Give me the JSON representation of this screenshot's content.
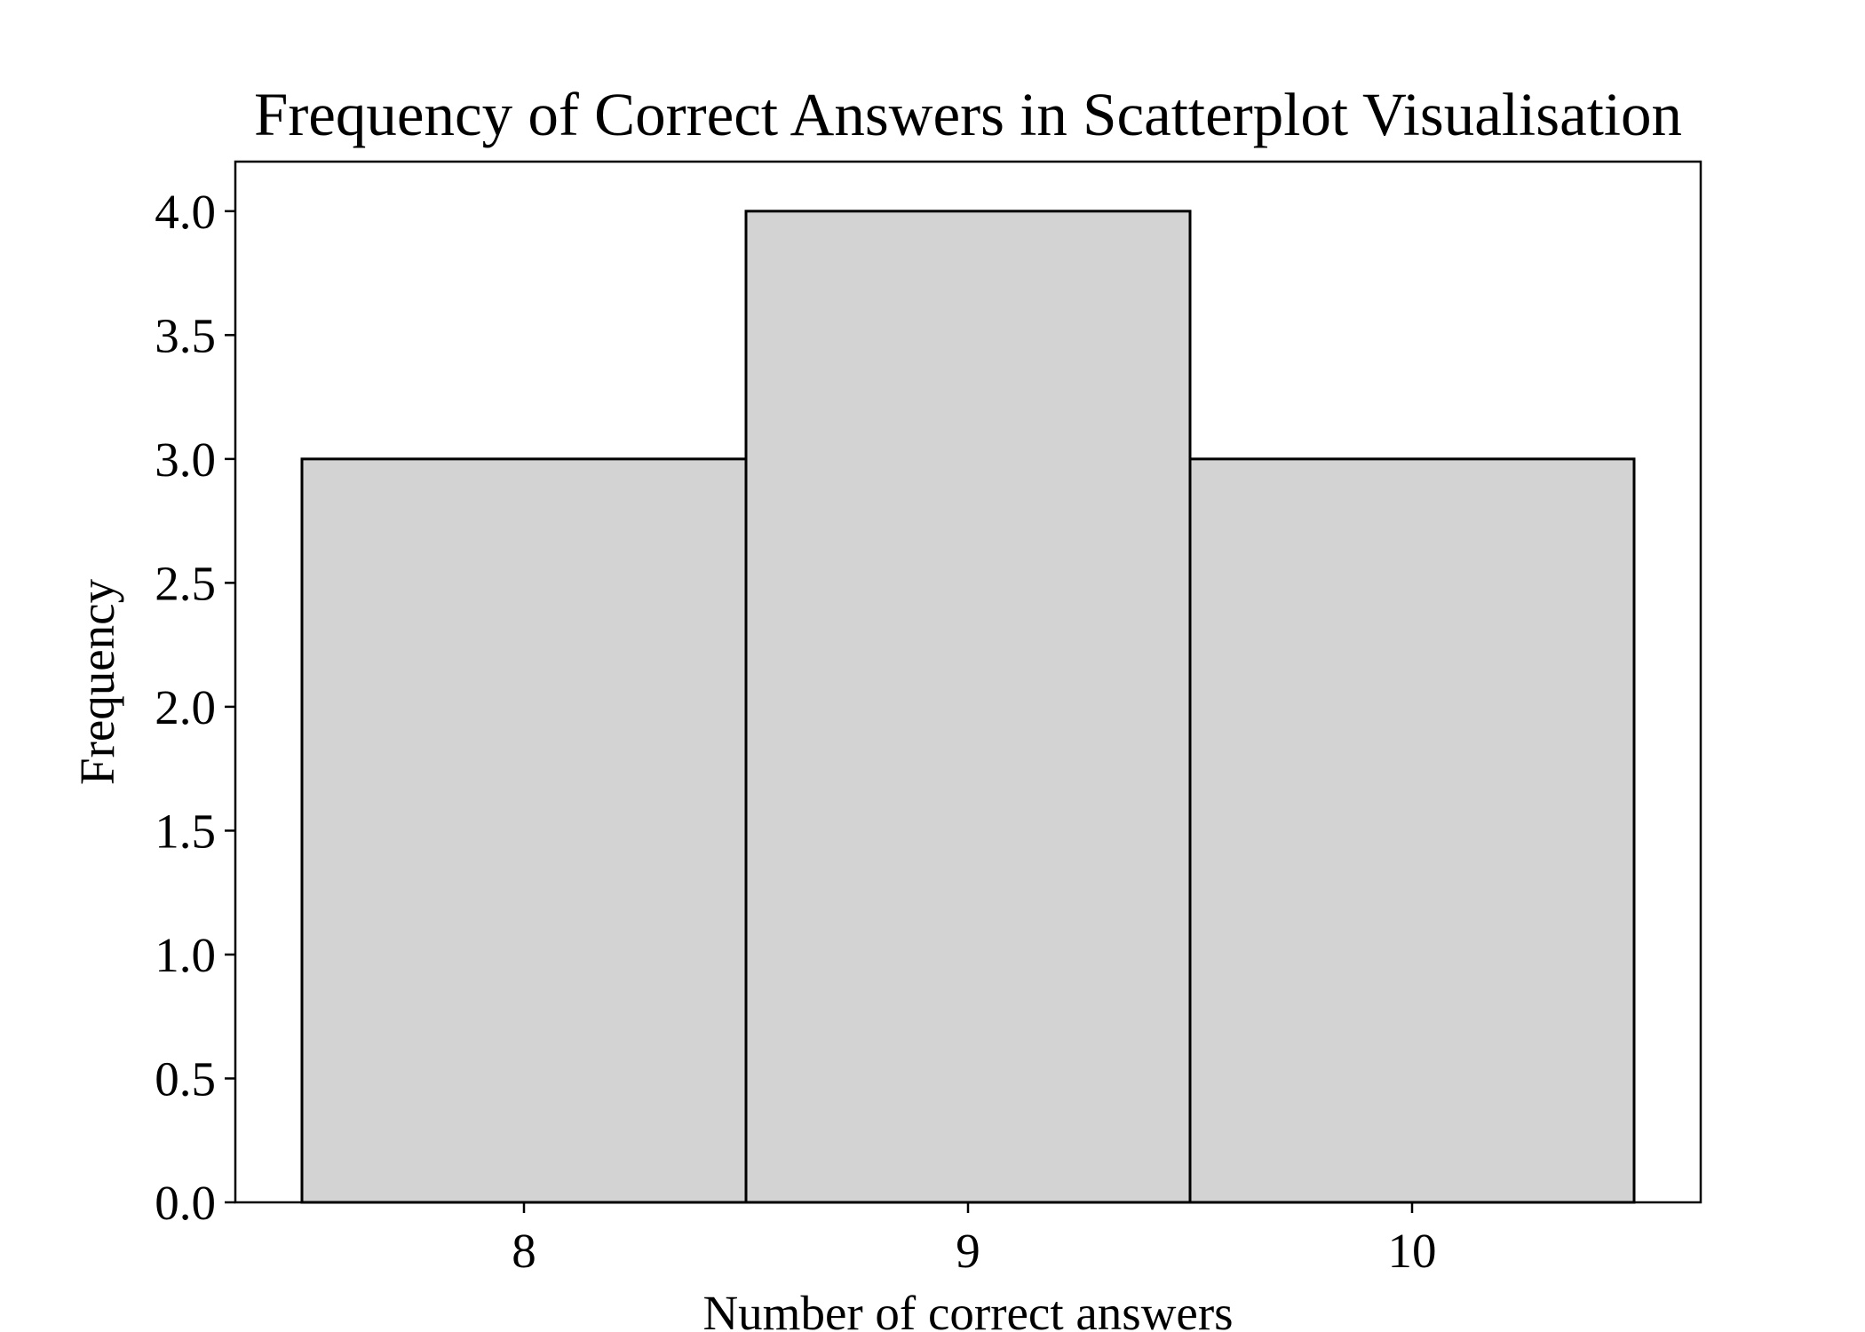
{
  "chart_data": {
    "type": "bar",
    "title": "Frequency of Correct Answers in Scatterplot Visualisation",
    "xlabel": "Number of correct answers",
    "ylabel": "Frequency",
    "categories": [
      8,
      9,
      10
    ],
    "values": [
      3,
      4,
      3
    ],
    "bin_width": 1,
    "xlim": [
      7.35,
      10.65
    ],
    "ylim": [
      0,
      4.2
    ],
    "x_ticks": [
      8,
      9,
      10
    ],
    "x_tick_labels": [
      "8",
      "9",
      "10"
    ],
    "y_ticks": [
      0,
      0.5,
      1,
      1.5,
      2,
      2.5,
      3,
      3.5,
      4
    ],
    "y_tick_labels": [
      "0.0",
      "0.5",
      "1.0",
      "1.5",
      "2.0",
      "2.5",
      "3.0",
      "3.5",
      "4.0"
    ],
    "grid": false,
    "legend": "none",
    "colors": {
      "bar_fill": "#d3d3d3",
      "bar_edge": "#000000",
      "axes": "#000000",
      "background": "#ffffff"
    }
  }
}
